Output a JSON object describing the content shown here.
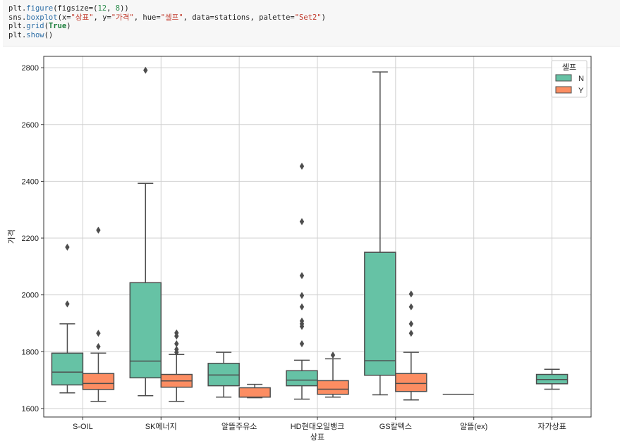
{
  "code": {
    "lines": [
      [
        {
          "t": "plt.",
          "c": ""
        },
        {
          "t": "figure",
          "c": "fn"
        },
        {
          "t": "(figsize=(",
          "c": ""
        },
        {
          "t": "12",
          "c": "num"
        },
        {
          "t": ", ",
          "c": ""
        },
        {
          "t": "8",
          "c": "num"
        },
        {
          "t": "))",
          "c": ""
        }
      ],
      [
        {
          "t": "sns.",
          "c": ""
        },
        {
          "t": "boxplot",
          "c": "fn"
        },
        {
          "t": "(x=",
          "c": ""
        },
        {
          "t": "\"상표\"",
          "c": "str"
        },
        {
          "t": ", y=",
          "c": ""
        },
        {
          "t": "\"가격\"",
          "c": "str"
        },
        {
          "t": ", hue=",
          "c": ""
        },
        {
          "t": "\"셀프\"",
          "c": "str"
        },
        {
          "t": ", data=stations, palette=",
          "c": ""
        },
        {
          "t": "\"Set2\"",
          "c": "str"
        },
        {
          "t": ")",
          "c": ""
        }
      ],
      [
        {
          "t": "plt.",
          "c": ""
        },
        {
          "t": "grid",
          "c": "fn"
        },
        {
          "t": "(",
          "c": ""
        },
        {
          "t": "True",
          "c": "kw"
        },
        {
          "t": ")",
          "c": ""
        }
      ],
      [
        {
          "t": "plt.",
          "c": ""
        },
        {
          "t": "show",
          "c": "fn"
        },
        {
          "t": "()",
          "c": ""
        }
      ]
    ]
  },
  "chart_data": {
    "type": "boxplot",
    "xlabel": "상표",
    "ylabel": "가격",
    "ylim": [
      1570,
      2840
    ],
    "yticks": [
      1600,
      1800,
      2000,
      2200,
      2400,
      2600,
      2800
    ],
    "grid": true,
    "legend": {
      "title": "셀프",
      "position": "top-right",
      "entries": [
        "N",
        "Y"
      ]
    },
    "colors": {
      "N": "#66c2a5",
      "Y": "#fc8d62",
      "line": "#4d4d4d",
      "grid": "#d0d0d0"
    },
    "categories": [
      "S-OIL",
      "SK에너지",
      "알뜰주유소",
      "HD현대오일뱅크",
      "GS칼텍스",
      "알뜰(ex)",
      "자가상표"
    ],
    "series": [
      {
        "name": "N",
        "boxes": [
          {
            "category": "S-OIL",
            "whislo": 1655,
            "q1": 1683,
            "med": 1728,
            "q3": 1795,
            "whishi": 1898,
            "fliers": [
              1968,
              2168
            ]
          },
          {
            "category": "SK에너지",
            "whislo": 1645,
            "q1": 1708,
            "med": 1767,
            "q3": 2043,
            "whishi": 2393,
            "fliers": [
              2791
            ]
          },
          {
            "category": "알뜰주유소",
            "whislo": 1640,
            "q1": 1680,
            "med": 1718,
            "q3": 1759,
            "whishi": 1798,
            "fliers": []
          },
          {
            "category": "HD현대오일뱅크",
            "whislo": 1633,
            "q1": 1680,
            "med": 1700,
            "q3": 1733,
            "whishi": 1770,
            "fliers": [
              1828,
              1889,
              1898,
              1908,
              1958,
              1998,
              2068,
              2258,
              2453
            ]
          },
          {
            "category": "GS칼텍스",
            "whislo": 1648,
            "q1": 1717,
            "med": 1768,
            "q3": 2150,
            "whishi": 2785,
            "fliers": []
          },
          {
            "category": "알뜰(ex)",
            "whislo": 1650,
            "q1": 1650,
            "med": 1650,
            "q3": 1650,
            "whishi": 1650,
            "fliers": []
          },
          null
        ]
      },
      {
        "name": "Y",
        "boxes": [
          {
            "category": "S-OIL",
            "whislo": 1625,
            "q1": 1667,
            "med": 1688,
            "q3": 1723,
            "whishi": 1795,
            "fliers": [
              1818,
              1865,
              2228
            ]
          },
          {
            "category": "SK에너지",
            "whislo": 1625,
            "q1": 1675,
            "med": 1697,
            "q3": 1720,
            "whishi": 1790,
            "fliers": [
              1798,
              1808,
              1828,
              1855,
              1866
            ]
          },
          {
            "category": "알뜰주유소",
            "whislo": 1638,
            "q1": 1640,
            "med": 1640,
            "q3": 1673,
            "whishi": 1685,
            "fliers": []
          },
          {
            "category": "HD현대오일뱅크",
            "whislo": 1640,
            "q1": 1650,
            "med": 1668,
            "q3": 1698,
            "whishi": 1775,
            "fliers": [
              1788
            ]
          },
          {
            "category": "GS칼텍스",
            "whislo": 1630,
            "q1": 1660,
            "med": 1688,
            "q3": 1723,
            "whishi": 1798,
            "fliers": [
              1865,
              1898,
              1958,
              2003
            ]
          },
          null,
          null
        ]
      },
      {
        "name": "자가상표",
        "boxes": [
          null,
          null,
          null,
          null,
          null,
          null,
          {
            "category": "자가상표",
            "whislo": 1668,
            "q1": 1687,
            "med": 1702,
            "q3": 1720,
            "whishi": 1738,
            "fliers": [],
            "hue": "N"
          }
        ]
      }
    ]
  }
}
